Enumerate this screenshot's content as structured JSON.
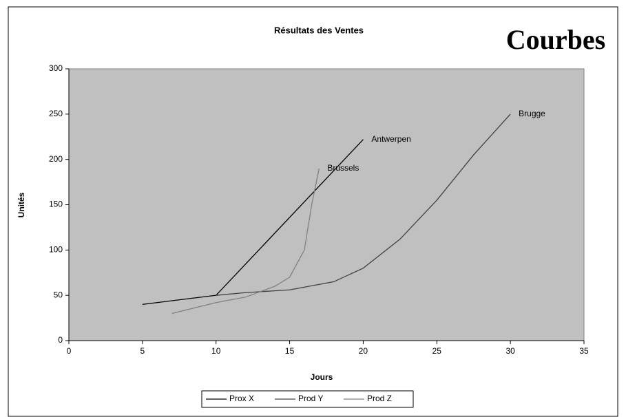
{
  "chart_data": {
    "type": "line",
    "title": "Résultats des Ventes",
    "heading": "Courbes",
    "x_label": "Jours",
    "y_label": "Unités",
    "xlim": [
      0,
      35
    ],
    "xticks": [
      0,
      5,
      10,
      15,
      20,
      25,
      30,
      35
    ],
    "ylim": [
      0,
      300
    ],
    "yticks": [
      0,
      50,
      100,
      150,
      200,
      250,
      300
    ],
    "legend": "bottom",
    "plot_color": "#c0c0c0",
    "series": [
      {
        "name": "Prox X",
        "color": "#000000",
        "label": "Antwerpen",
        "x": [
          5,
          10,
          20
        ],
        "values": [
          40,
          50,
          222
        ]
      },
      {
        "name": "Prod Y",
        "color": "#404040",
        "label": "Brugge",
        "x": [
          10,
          12,
          15,
          18,
          20,
          22.5,
          25,
          27.5,
          30
        ],
        "values": [
          50,
          53,
          56,
          65,
          80,
          112,
          155,
          205,
          250
        ]
      },
      {
        "name": "Prod Z",
        "color": "#808080",
        "label": "Brussels",
        "x": [
          7,
          10,
          12,
          14,
          15,
          16,
          16.5,
          17
        ],
        "values": [
          30,
          42,
          48,
          60,
          70,
          100,
          150,
          190
        ]
      }
    ]
  }
}
